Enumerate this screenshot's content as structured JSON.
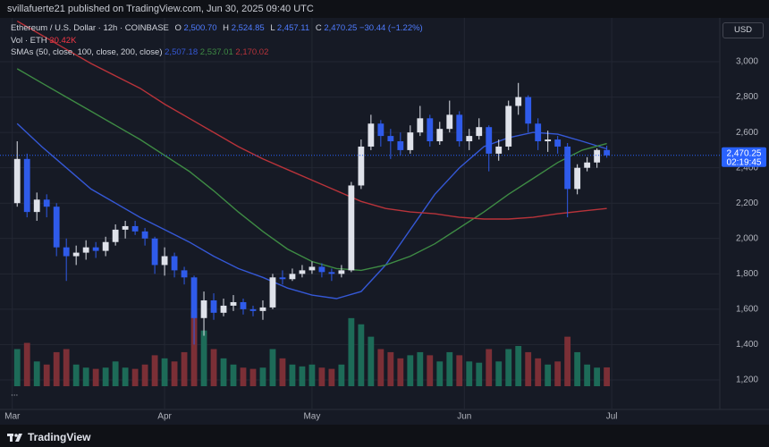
{
  "header": {
    "byline": "svillafuerte21 published on TradingView.com, Jun 30, 2025 09:40 UTC",
    "brand": "TradingView",
    "currency": "USD"
  },
  "chart_data": {
    "type": "candlestick",
    "legend": {
      "symbol": "Ethereum / U.S. Dollar · 12h · COINBASE",
      "ohlc": [
        {
          "key": "O",
          "text": "2,500.70"
        },
        {
          "key": "H",
          "text": "2,524.85"
        },
        {
          "key": "L",
          "text": "2,457.11"
        },
        {
          "key": "C",
          "text": "2,470.25"
        }
      ],
      "change": "−30.44 (−1.22%)",
      "volume_title": "Vol · ETH",
      "volume_text": "30.42K",
      "sma_title": "SMAs (50, close, 100, close, 200, close)",
      "more": "..."
    },
    "candles": {
      "x": [
        1,
        3,
        5,
        7,
        9,
        11,
        13,
        15,
        17,
        19,
        21,
        23,
        25,
        27,
        29,
        31,
        33,
        35,
        37,
        39,
        41,
        43,
        45,
        47,
        49,
        51,
        53,
        55,
        57,
        59,
        61,
        63,
        65,
        67,
        69,
        71,
        73,
        75,
        77,
        79,
        81,
        83,
        85,
        87,
        89,
        91,
        93,
        95,
        97,
        99,
        101,
        103,
        105,
        107,
        109,
        111,
        113,
        115,
        117,
        119,
        121
      ],
      "open": [
        2200,
        2450,
        2150,
        2220,
        2180,
        1950,
        1900,
        1920,
        1950,
        1930,
        1980,
        2050,
        2070,
        2040,
        2000,
        1850,
        1900,
        1820,
        1780,
        1550,
        1650,
        1580,
        1620,
        1640,
        1600,
        1590,
        1610,
        1780,
        1770,
        1800,
        1820,
        1840,
        1810,
        1800,
        1820,
        2300,
        2520,
        2650,
        2580,
        2550,
        2500,
        2600,
        2680,
        2550,
        2620,
        2700,
        2550,
        2580,
        2630,
        2480,
        2520,
        2750,
        2800,
        2650,
        2550,
        2560,
        2520,
        2280,
        2400,
        2430,
        2500.7
      ],
      "high": [
        2550,
        2480,
        2260,
        2250,
        2200,
        2000,
        1960,
        1990,
        1980,
        2010,
        2080,
        2100,
        2100,
        2060,
        2010,
        1950,
        1920,
        1840,
        1790,
        1700,
        1690,
        1660,
        1680,
        1660,
        1620,
        1650,
        1800,
        1820,
        1830,
        1850,
        1870,
        1860,
        1830,
        1850,
        2320,
        2560,
        2700,
        2670,
        2620,
        2600,
        2640,
        2750,
        2700,
        2660,
        2780,
        2720,
        2620,
        2680,
        2640,
        2560,
        2780,
        2880,
        2810,
        2680,
        2610,
        2580,
        2540,
        2420,
        2460,
        2510,
        2524.85
      ],
      "low": [
        2180,
        2120,
        2100,
        2120,
        1900,
        1760,
        1850,
        1880,
        1890,
        1900,
        1960,
        2000,
        2020,
        1960,
        1800,
        1790,
        1780,
        1740,
        1400,
        1450,
        1540,
        1560,
        1590,
        1570,
        1560,
        1540,
        1600,
        1740,
        1760,
        1780,
        1800,
        1780,
        1760,
        1780,
        1810,
        2280,
        2500,
        2520,
        2450,
        2470,
        2480,
        2580,
        2520,
        2530,
        2600,
        2520,
        2500,
        2560,
        2380,
        2440,
        2500,
        2700,
        2600,
        2500,
        2490,
        2480,
        2120,
        2250,
        2380,
        2400,
        2457.11
      ],
      "close": [
        2450,
        2150,
        2220,
        2180,
        1950,
        1900,
        1920,
        1950,
        1930,
        1980,
        2050,
        2070,
        2040,
        2000,
        1850,
        1900,
        1820,
        1780,
        1550,
        1650,
        1580,
        1620,
        1640,
        1600,
        1590,
        1610,
        1780,
        1770,
        1800,
        1820,
        1840,
        1810,
        1800,
        1820,
        2300,
        2520,
        2650,
        2580,
        2550,
        2500,
        2600,
        2680,
        2550,
        2620,
        2700,
        2550,
        2580,
        2630,
        2480,
        2520,
        2750,
        2800,
        2650,
        2550,
        2560,
        2520,
        2280,
        2400,
        2430,
        2500.7,
        2470.25
      ],
      "up_color": "#dfe2ea",
      "down_color": "#2f5bea"
    },
    "volume": {
      "values": [
        60,
        70,
        40,
        35,
        55,
        60,
        35,
        30,
        28,
        30,
        40,
        30,
        28,
        35,
        50,
        45,
        40,
        55,
        120,
        90,
        60,
        45,
        35,
        30,
        28,
        30,
        60,
        45,
        35,
        32,
        35,
        30,
        28,
        35,
        110,
        100,
        80,
        60,
        55,
        45,
        50,
        55,
        50,
        40,
        55,
        50,
        40,
        38,
        60,
        40,
        60,
        65,
        55,
        45,
        35,
        40,
        80,
        55,
        35,
        30,
        30.42
      ],
      "max": 130,
      "up_color": "#1d6b58",
      "down_color": "#7b2f36"
    },
    "smas": [
      {
        "color": "#3558d6",
        "value_label": "2,507.18",
        "x": [
          1,
          6,
          11,
          16,
          21,
          26,
          31,
          36,
          41,
          46,
          51,
          56,
          61,
          66,
          71,
          76,
          81,
          86,
          91,
          96,
          101,
          106,
          111,
          116,
          121
        ],
        "values": [
          2650,
          2520,
          2400,
          2280,
          2200,
          2120,
          2050,
          1980,
          1900,
          1830,
          1780,
          1720,
          1680,
          1660,
          1700,
          1850,
          2050,
          2250,
          2400,
          2520,
          2570,
          2600,
          2590,
          2550,
          2507.18
        ]
      },
      {
        "color": "#3e8b44",
        "value_label": "2,537.01",
        "x": [
          1,
          6,
          11,
          16,
          21,
          26,
          31,
          36,
          41,
          46,
          51,
          56,
          61,
          66,
          71,
          76,
          81,
          86,
          91,
          96,
          101,
          106,
          111,
          116,
          121
        ],
        "values": [
          2960,
          2880,
          2800,
          2720,
          2640,
          2560,
          2470,
          2380,
          2270,
          2150,
          2040,
          1940,
          1870,
          1830,
          1820,
          1850,
          1900,
          1970,
          2060,
          2150,
          2250,
          2340,
          2430,
          2500,
          2537.01
        ]
      },
      {
        "color": "#b8333a",
        "value_label": "2,170.02",
        "x": [
          1,
          6,
          11,
          16,
          21,
          26,
          31,
          36,
          41,
          46,
          51,
          56,
          61,
          66,
          71,
          76,
          81,
          86,
          91,
          96,
          101,
          106,
          111,
          116,
          121
        ],
        "values": [
          3230,
          3150,
          3070,
          2990,
          2920,
          2850,
          2760,
          2680,
          2600,
          2520,
          2450,
          2390,
          2330,
          2270,
          2210,
          2170,
          2150,
          2140,
          2120,
          2110,
          2110,
          2120,
          2140,
          2155,
          2170.02
        ]
      }
    ],
    "last_price": {
      "value": 2470.25,
      "label": "2,470.25",
      "countdown": "02:19:45",
      "color": "#2962ff"
    },
    "xlim": [
      -2.5,
      144
    ],
    "xticks": [
      {
        "value": 0,
        "label": "Mar"
      },
      {
        "value": 31,
        "label": "Apr"
      },
      {
        "value": 61,
        "label": "May"
      },
      {
        "value": 92,
        "label": "Jun"
      },
      {
        "value": 122,
        "label": "Jul"
      }
    ],
    "ylim": [
      1033,
      3248
    ],
    "yticks": [
      {
        "value": 1200,
        "label": "1,200"
      },
      {
        "value": 1400,
        "label": "1,400"
      },
      {
        "value": 1600,
        "label": "1,600"
      },
      {
        "value": 1800,
        "label": "1,800"
      },
      {
        "value": 2000,
        "label": "2,000"
      },
      {
        "value": 2200,
        "label": "2,200"
      },
      {
        "value": 2400,
        "label": "2,400"
      },
      {
        "value": 2600,
        "label": "2,600"
      },
      {
        "value": 2800,
        "label": "2,800"
      },
      {
        "value": 3000,
        "label": "3,000"
      }
    ],
    "grid": true
  }
}
